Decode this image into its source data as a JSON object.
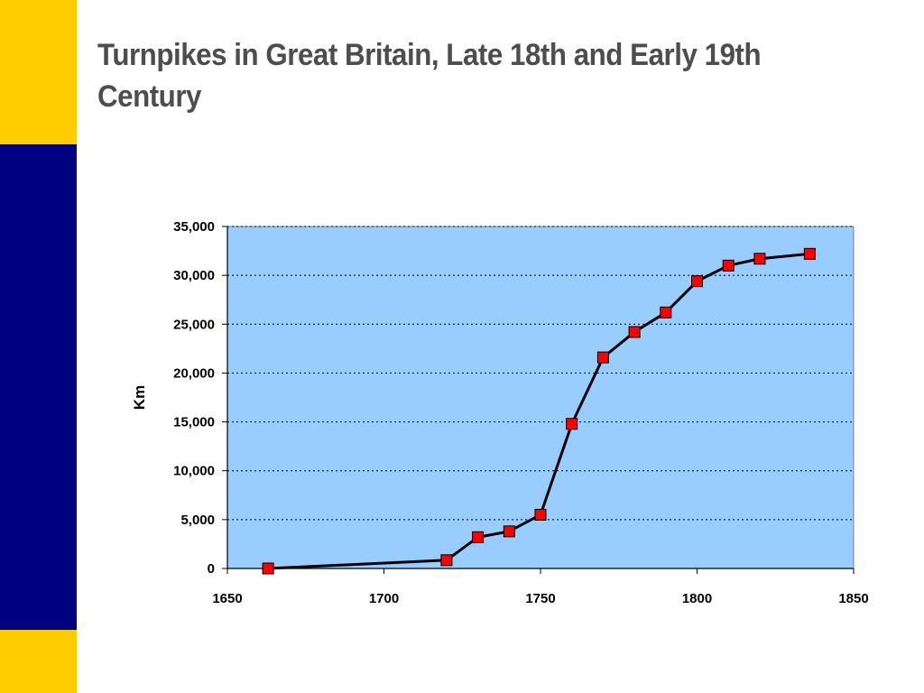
{
  "slide": {
    "title": "Turnpikes in Great Britain, Late 18th and Early 19th Century"
  },
  "colors": {
    "band_accent": "#ffcc00",
    "band_main": "#000080",
    "plot_area": "#99ccff",
    "marker_fill": "#ff0000",
    "line": "#000000",
    "title_text": "#4d4d4d"
  },
  "chart_data": {
    "type": "line",
    "title": "",
    "xlabel": "",
    "ylabel": "Km",
    "xlim": [
      1650,
      1850
    ],
    "ylim": [
      0,
      35000
    ],
    "xticks": [
      1650,
      1700,
      1750,
      1800,
      1850
    ],
    "yticks": [
      0,
      5000,
      10000,
      15000,
      20000,
      25000,
      30000,
      35000
    ],
    "xtick_labels": [
      "1650",
      "1700",
      "1750",
      "1800",
      "1850"
    ],
    "ytick_labels": [
      "0",
      "5,000",
      "10,000",
      "15,000",
      "20,000",
      "25,000",
      "30,000",
      "35,000"
    ],
    "grid": "horizontal dotted",
    "markers": "square",
    "series": [
      {
        "x": [
          1663,
          1720,
          1730,
          1740,
          1750,
          1760,
          1770,
          1780,
          1790,
          1800,
          1810,
          1820,
          1836
        ],
        "y": [
          0,
          850,
          3200,
          3800,
          5500,
          14800,
          21600,
          24200,
          26200,
          29400,
          31000,
          31700,
          32200
        ]
      }
    ]
  }
}
